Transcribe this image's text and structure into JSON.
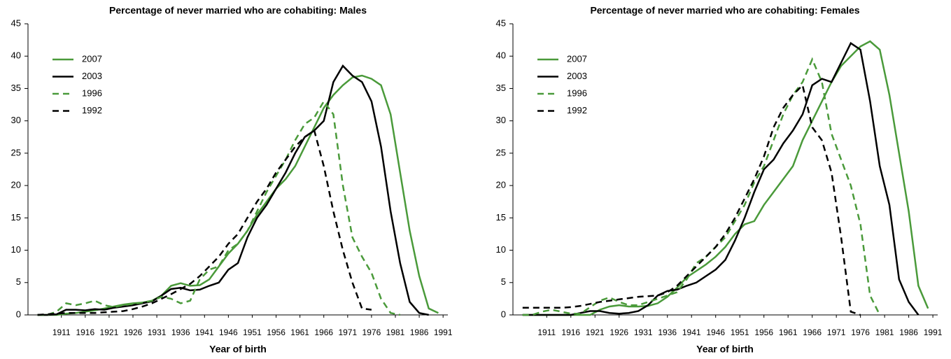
{
  "chart_data": [
    {
      "type": "line",
      "title": "Percentage of never married who are cohabiting: Males",
      "x_label": "Year of birth",
      "x": [
        1906,
        1908,
        1910,
        1912,
        1914,
        1916,
        1918,
        1920,
        1922,
        1924,
        1926,
        1928,
        1930,
        1932,
        1934,
        1936,
        1938,
        1940,
        1942,
        1944,
        1946,
        1948,
        1950,
        1952,
        1954,
        1956,
        1958,
        1960,
        1962,
        1964,
        1966,
        1968,
        1970,
        1972,
        1974,
        1976,
        1978,
        1980,
        1982,
        1984,
        1986,
        1988,
        1990
      ],
      "xlim": [
        1904,
        1992
      ],
      "xticks": [
        1911,
        1916,
        1921,
        1926,
        1931,
        1936,
        1941,
        1946,
        1951,
        1956,
        1961,
        1966,
        1971,
        1976,
        1981,
        1986,
        1991
      ],
      "ylim": [
        0,
        45
      ],
      "yticks": [
        0,
        5,
        10,
        15,
        20,
        25,
        30,
        35,
        40,
        45
      ],
      "legend": "upper left",
      "series": [
        {
          "name": "2007",
          "color": "#4a9a3a",
          "style": "solid",
          "values": [
            0,
            0,
            0,
            0.2,
            0.3,
            0.5,
            0.7,
            1,
            1.3,
            1.6,
            1.8,
            1.9,
            2.2,
            3,
            4.5,
            4.9,
            4.5,
            4.6,
            5.5,
            7.5,
            9.5,
            11,
            13,
            15.5,
            17.5,
            19.5,
            21,
            23,
            26,
            29,
            32,
            34,
            35.5,
            36.7,
            37,
            36.5,
            35.5,
            31,
            22,
            13,
            6,
            1,
            0.3
          ]
        },
        {
          "name": "2003",
          "color": "#000000",
          "style": "solid",
          "values": [
            0,
            0,
            0.1,
            0.8,
            0.8,
            0.7,
            0.9,
            0.8,
            1.1,
            1.3,
            1.5,
            1.8,
            2.1,
            3,
            4,
            4.2,
            3.8,
            3.9,
            4.5,
            5,
            7,
            8,
            12,
            15,
            17,
            19.5,
            22,
            25,
            27.5,
            28.5,
            30,
            36,
            38.5,
            37,
            36,
            33,
            26,
            16,
            8,
            2,
            0.3,
            0,
            null
          ]
        },
        {
          "name": "1996",
          "color": "#4a9a3a",
          "style": "dashed",
          "values": [
            0,
            0,
            0.5,
            1.8,
            1.5,
            1.8,
            2.2,
            1.5,
            1.2,
            1.5,
            1.7,
            1.9,
            2.2,
            2.8,
            2.5,
            1.8,
            2.2,
            5.5,
            7,
            7.5,
            10,
            11,
            13,
            16,
            19,
            21.5,
            24,
            27,
            29.5,
            30.5,
            33,
            31,
            20,
            12,
            9,
            6.5,
            2.5,
            0.3,
            0,
            null,
            null,
            null,
            null
          ]
        },
        {
          "name": "1992",
          "color": "#000000",
          "style": "dashed",
          "values": [
            0,
            0.1,
            0.2,
            0.3,
            0.3,
            0.3,
            0.3,
            0.4,
            0.5,
            0.6,
            0.9,
            1.3,
            1.8,
            2.5,
            3.2,
            4,
            4.8,
            6,
            7.5,
            9,
            11,
            12.5,
            15,
            17.5,
            19.5,
            22,
            24,
            26,
            27.5,
            28.5,
            23,
            16,
            10,
            5,
            1,
            0.8,
            null,
            null,
            null,
            null,
            null,
            null,
            null
          ]
        }
      ]
    },
    {
      "type": "line",
      "title": "Percentage of never married who are cohabiting: Females",
      "x_label": "Year of birth",
      "x": [
        1906,
        1908,
        1910,
        1912,
        1914,
        1916,
        1918,
        1920,
        1922,
        1924,
        1926,
        1928,
        1930,
        1932,
        1934,
        1936,
        1938,
        1940,
        1942,
        1944,
        1946,
        1948,
        1950,
        1952,
        1954,
        1956,
        1958,
        1960,
        1962,
        1964,
        1966,
        1968,
        1970,
        1972,
        1974,
        1976,
        1978,
        1980,
        1982,
        1984,
        1986,
        1988,
        1990
      ],
      "xlim": [
        1904,
        1992
      ],
      "xticks": [
        1911,
        1916,
        1921,
        1926,
        1931,
        1936,
        1941,
        1946,
        1951,
        1956,
        1961,
        1966,
        1971,
        1976,
        1981,
        1986,
        1991
      ],
      "ylim": [
        0,
        45
      ],
      "yticks": [
        0,
        5,
        10,
        15,
        20,
        25,
        30,
        35,
        40,
        45
      ],
      "legend": "upper left",
      "series": [
        {
          "name": "2007",
          "color": "#4a9a3a",
          "style": "solid",
          "values": [
            0,
            0,
            0,
            0,
            0,
            0,
            0,
            0,
            0.8,
            1.3,
            1.5,
            1.3,
            1.3,
            1.4,
            1.8,
            2.8,
            4.2,
            5.8,
            6.8,
            7.8,
            9,
            10.5,
            12.5,
            14,
            14.5,
            17,
            19,
            21,
            23,
            27,
            30,
            33,
            36,
            38.5,
            40,
            41.5,
            42.3,
            41,
            34,
            25,
            16,
            4.5,
            1
          ]
        },
        {
          "name": "2003",
          "color": "#000000",
          "style": "solid",
          "values": [
            0,
            0,
            0,
            0,
            0,
            0,
            0.3,
            0.6,
            0.6,
            0.3,
            0.2,
            0.3,
            0.6,
            1.5,
            3,
            3.7,
            3.9,
            4.5,
            5,
            6,
            7,
            8.5,
            11.5,
            15,
            19,
            22.5,
            24,
            26.5,
            28.5,
            31,
            35.5,
            36.5,
            36,
            39,
            42,
            41,
            33,
            23,
            17,
            5.5,
            2,
            0,
            null
          ]
        },
        {
          "name": "1996",
          "color": "#4a9a3a",
          "style": "dashed",
          "values": [
            0,
            0,
            0.5,
            0.8,
            0.5,
            0.2,
            0.2,
            1.2,
            2.2,
            2.7,
            2,
            1.5,
            1.5,
            2,
            2.5,
            3,
            3.5,
            5.5,
            8,
            9,
            10.5,
            12,
            14.5,
            17,
            20.5,
            23,
            27,
            31,
            34,
            36,
            39.5,
            36,
            28,
            24,
            20,
            14,
            3,
            0,
            null,
            null,
            null,
            null,
            null
          ]
        },
        {
          "name": "1992",
          "color": "#000000",
          "style": "dashed",
          "values": [
            1.1,
            1.1,
            1.1,
            1.1,
            1.1,
            1.2,
            1.4,
            1.7,
            2,
            2.2,
            2.4,
            2.6,
            2.8,
            2.9,
            3,
            3.5,
            4.5,
            6,
            7.5,
            9,
            10.5,
            12.5,
            15,
            18,
            21,
            24.5,
            29,
            32,
            34,
            35.5,
            29,
            27,
            22,
            12,
            0.5,
            0,
            null,
            null,
            null,
            null,
            null,
            null,
            null
          ]
        }
      ]
    }
  ]
}
